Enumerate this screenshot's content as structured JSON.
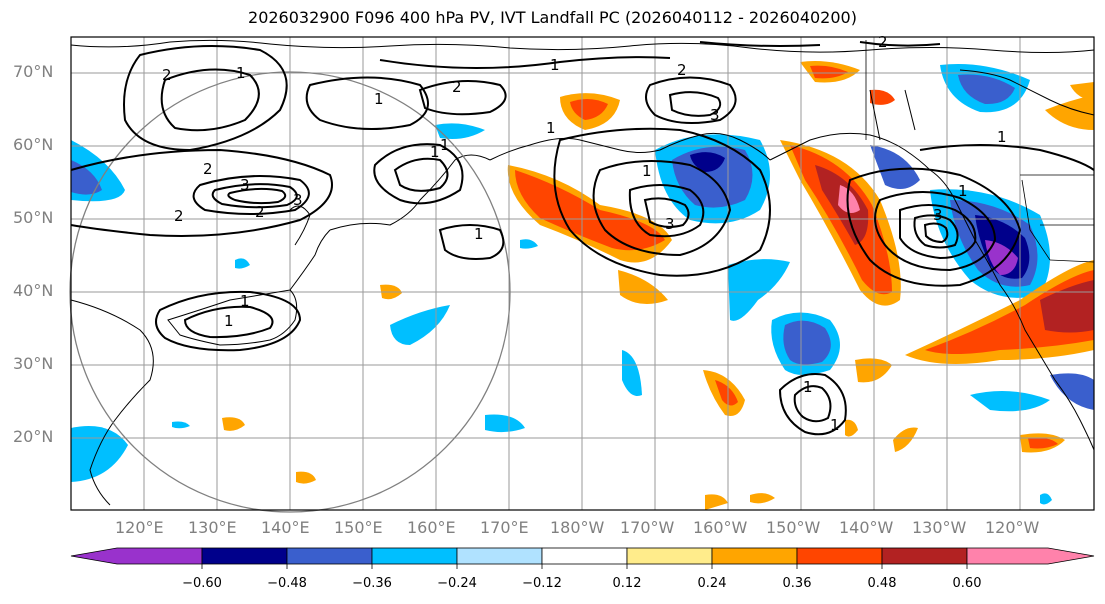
{
  "title": "2026032900 F096 400 hPa PV, IVT Landfall PC (2026040112 - 2026040200)",
  "map": {
    "lon_range": [
      110,
      250
    ],
    "lat_range": [
      10,
      75
    ],
    "lat_ticks": [
      "70°N",
      "60°N",
      "50°N",
      "40°N",
      "30°N",
      "20°N"
    ],
    "lon_ticks": [
      "120°E",
      "130°E",
      "140°E",
      "150°E",
      "160°E",
      "170°E",
      "180°W",
      "170°W",
      "160°W",
      "150°W",
      "140°W",
      "130°W",
      "120°W"
    ],
    "contour_labels": [
      "2",
      "1",
      "2",
      "1",
      "2",
      "2",
      "1",
      "2",
      "1",
      "3",
      "3",
      "2",
      "2",
      "1",
      "1",
      "1",
      "1",
      "1",
      "3",
      "3",
      "1",
      "1",
      "1",
      "3",
      "1",
      "1"
    ]
  },
  "colorbar": {
    "ticks": [
      "−0.60",
      "−0.48",
      "−0.36",
      "−0.24",
      "−0.12",
      "0.12",
      "0.24",
      "0.36",
      "0.48",
      "0.60"
    ],
    "colors": [
      "#9932cc",
      "#00008b",
      "#3a5fcd",
      "#00bfff",
      "#b0e2ff",
      "#ffffff",
      "#ffec8b",
      "#ffa500",
      "#ff4500",
      "#b22222",
      "#ff82ab"
    ]
  }
}
